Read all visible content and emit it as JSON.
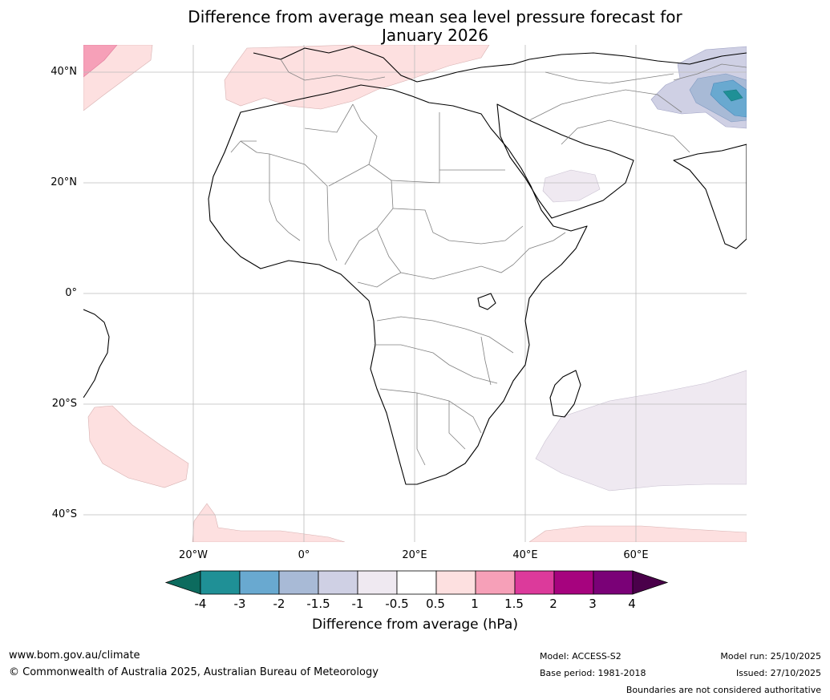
{
  "title": {
    "line1": "Difference from average mean sea level pressure forecast for",
    "line2": "January 2026"
  },
  "lat_labels": [
    "40°N",
    "20°N",
    "0°",
    "20°S",
    "40°S"
  ],
  "lon_labels": [
    "20°W",
    "0°",
    "20°E",
    "40°E",
    "60°E"
  ],
  "colorbar": {
    "title": "Difference from average (hPa)",
    "tick_labels": [
      "-4",
      "-3",
      "-2",
      "-1.5",
      "-1",
      "-0.5",
      "0.5",
      "1",
      "1.5",
      "2",
      "3",
      "4"
    ],
    "colors": [
      "#0c6b5e",
      "#1f9096",
      "#69a9d0",
      "#a8bad6",
      "#cfd0e4",
      "#efe9f1",
      "#ffffff",
      "#fde0e0",
      "#f6a0b8",
      "#dc3a9b",
      "#a6037e",
      "#7a0177",
      "#4a004a"
    ]
  },
  "footer": {
    "url": "www.bom.gov.au/climate",
    "copyright": "© Commonwealth of Australia 2025, Australian Bureau of Meteorology",
    "model": "Model: ACCESS-S2",
    "base_period": "Base period: 1981-2018",
    "model_run": "Model run: 25/10/2025",
    "issued": "Issued: 27/10/2025",
    "disclaimer": "Boundaries are not considered authoritative"
  }
}
